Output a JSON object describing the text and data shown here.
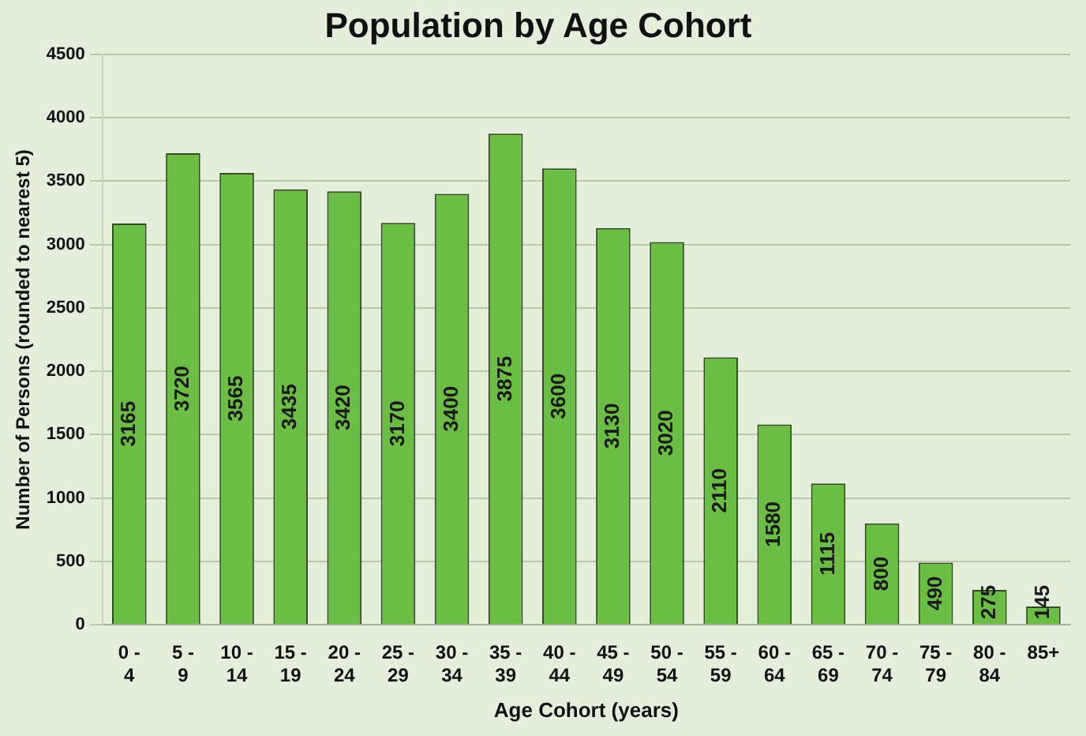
{
  "chart_data": {
    "type": "bar",
    "title": "Population by Age Cohort",
    "xlabel": "Age Cohort (years)",
    "ylabel": "Number of Persons (rounded to nearest 5)",
    "categories": [
      "0 - 4",
      "5 - 9",
      "10 - 14",
      "15 - 19",
      "20 - 24",
      "25 - 29",
      "30 - 34",
      "35 - 39",
      "40 - 44",
      "45 - 49",
      "50 - 54",
      "55 - 59",
      "60 - 64",
      "65 - 69",
      "70 - 74",
      "75 - 79",
      "80 - 84",
      "85+"
    ],
    "values": [
      3165,
      3720,
      3565,
      3435,
      3420,
      3170,
      3400,
      3875,
      3600,
      3130,
      3020,
      2110,
      1580,
      1115,
      800,
      490,
      275,
      145
    ],
    "color": "#6cbd45",
    "ylim": [
      0,
      4500
    ],
    "yticks": [
      0,
      500,
      1000,
      1500,
      2000,
      2500,
      3000,
      3500,
      4000,
      4500
    ],
    "grid": "y",
    "data_labels": true,
    "legend": false
  }
}
